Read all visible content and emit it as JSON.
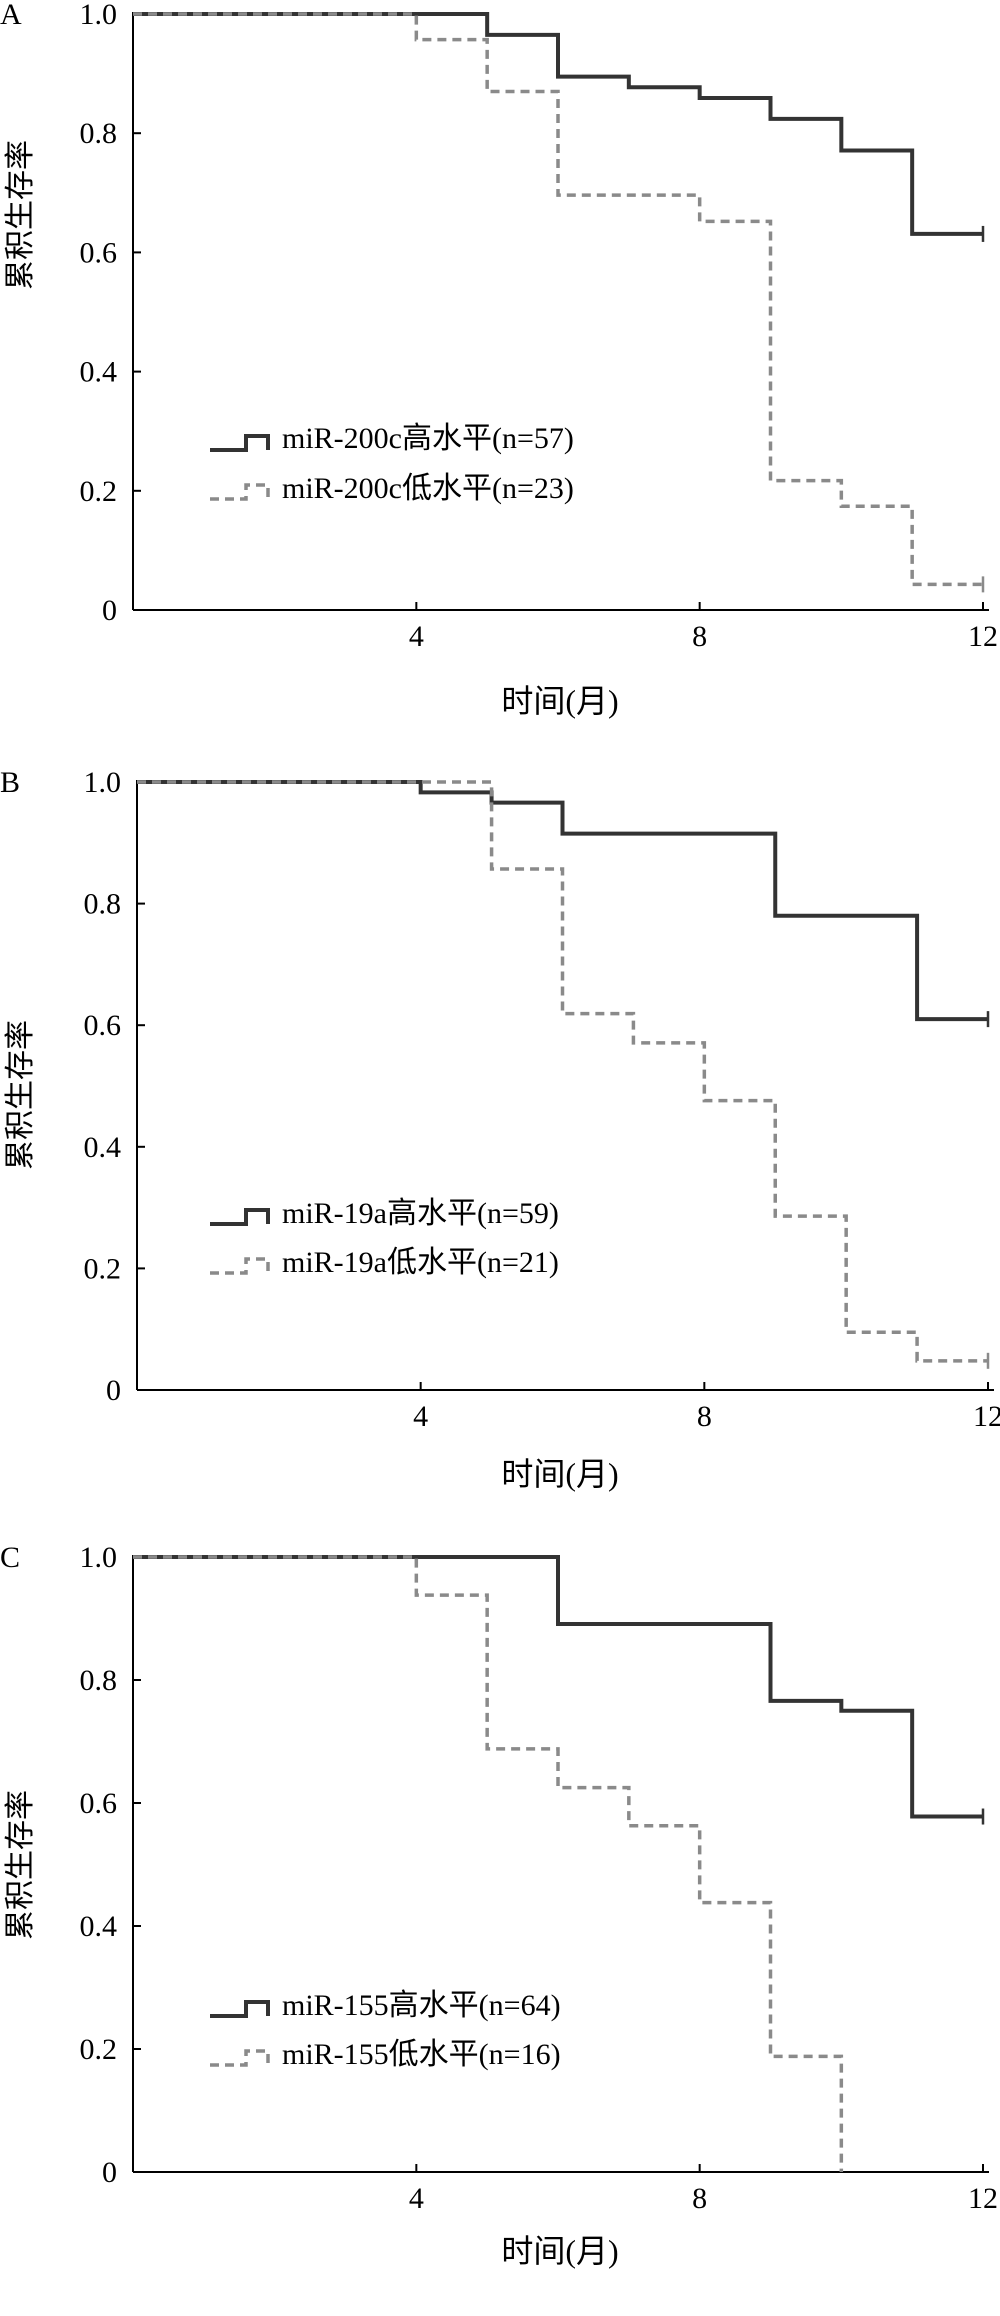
{
  "colors": {
    "high": "#333333",
    "low": "#8a8a8a",
    "axis": "#000000"
  },
  "chart_data": [
    {
      "type": "line",
      "panel": "A",
      "xlabel": "时间(月)",
      "ylabel": "累积生存率",
      "xlim": [
        0,
        12
      ],
      "ylim": [
        0,
        1
      ],
      "xticks": [
        "4",
        "8",
        "12"
      ],
      "yticks": [
        "0",
        "0.2",
        "0.4",
        "0.6",
        "0.8",
        "1.0"
      ],
      "series": [
        {
          "name": "miR-200c高水平",
          "n_label": "(n=57)",
          "style": "solid",
          "x": [
            0,
            5,
            6,
            7,
            8,
            9,
            10,
            11,
            12
          ],
          "y": [
            1.0,
            0.965,
            0.895,
            0.877,
            0.859,
            0.824,
            0.771,
            0.631,
            0.631
          ]
        },
        {
          "name": "miR-200c低水平",
          "n_label": "(n=23)",
          "style": "dashed",
          "x": [
            0,
            4,
            5,
            6,
            8,
            9,
            10,
            11,
            12
          ],
          "y": [
            1.0,
            0.957,
            0.87,
            0.696,
            0.652,
            0.217,
            0.174,
            0.043,
            0.043
          ]
        }
      ]
    },
    {
      "type": "line",
      "panel": "B",
      "xlabel": "时间(月)",
      "ylabel": "累积生存率",
      "xlim": [
        0,
        12
      ],
      "ylim": [
        0,
        1
      ],
      "xticks": [
        "4",
        "8",
        "12"
      ],
      "yticks": [
        "0",
        "0.2",
        "0.4",
        "0.6",
        "0.8",
        "1.0"
      ],
      "series": [
        {
          "name": "miR-19a高水平",
          "n_label": "(n=59)",
          "style": "solid",
          "x": [
            0,
            4,
            5,
            6,
            9,
            11,
            12
          ],
          "y": [
            1.0,
            0.983,
            0.966,
            0.915,
            0.78,
            0.61,
            0.61
          ]
        },
        {
          "name": "miR-19a低水平",
          "n_label": "(n=21)",
          "style": "dashed",
          "x": [
            0,
            5,
            6,
            7,
            8,
            9,
            10,
            11,
            12
          ],
          "y": [
            1.0,
            0.857,
            0.619,
            0.571,
            0.476,
            0.286,
            0.095,
            0.048,
            0.048
          ]
        }
      ]
    },
    {
      "type": "line",
      "panel": "C",
      "xlabel": "时间(月)",
      "ylabel": "累积生存率",
      "xlim": [
        0,
        12
      ],
      "ylim": [
        0,
        1
      ],
      "xticks": [
        "4",
        "8",
        "12"
      ],
      "yticks": [
        "0",
        "0.2",
        "0.4",
        "0.6",
        "0.8",
        "1.0"
      ],
      "series": [
        {
          "name": "miR-155高水平",
          "n_label": "(n=64)",
          "style": "solid",
          "x": [
            0,
            6,
            9,
            10,
            11,
            12
          ],
          "y": [
            1.0,
            0.891,
            0.766,
            0.75,
            0.578,
            0.578
          ]
        },
        {
          "name": "miR-155低水平",
          "n_label": "(n=16)",
          "style": "dashed",
          "x": [
            0,
            4,
            5,
            6,
            7,
            8,
            9,
            10
          ],
          "y": [
            1.0,
            0.938,
            0.688,
            0.625,
            0.563,
            0.438,
            0.188,
            0.0
          ]
        }
      ]
    }
  ]
}
